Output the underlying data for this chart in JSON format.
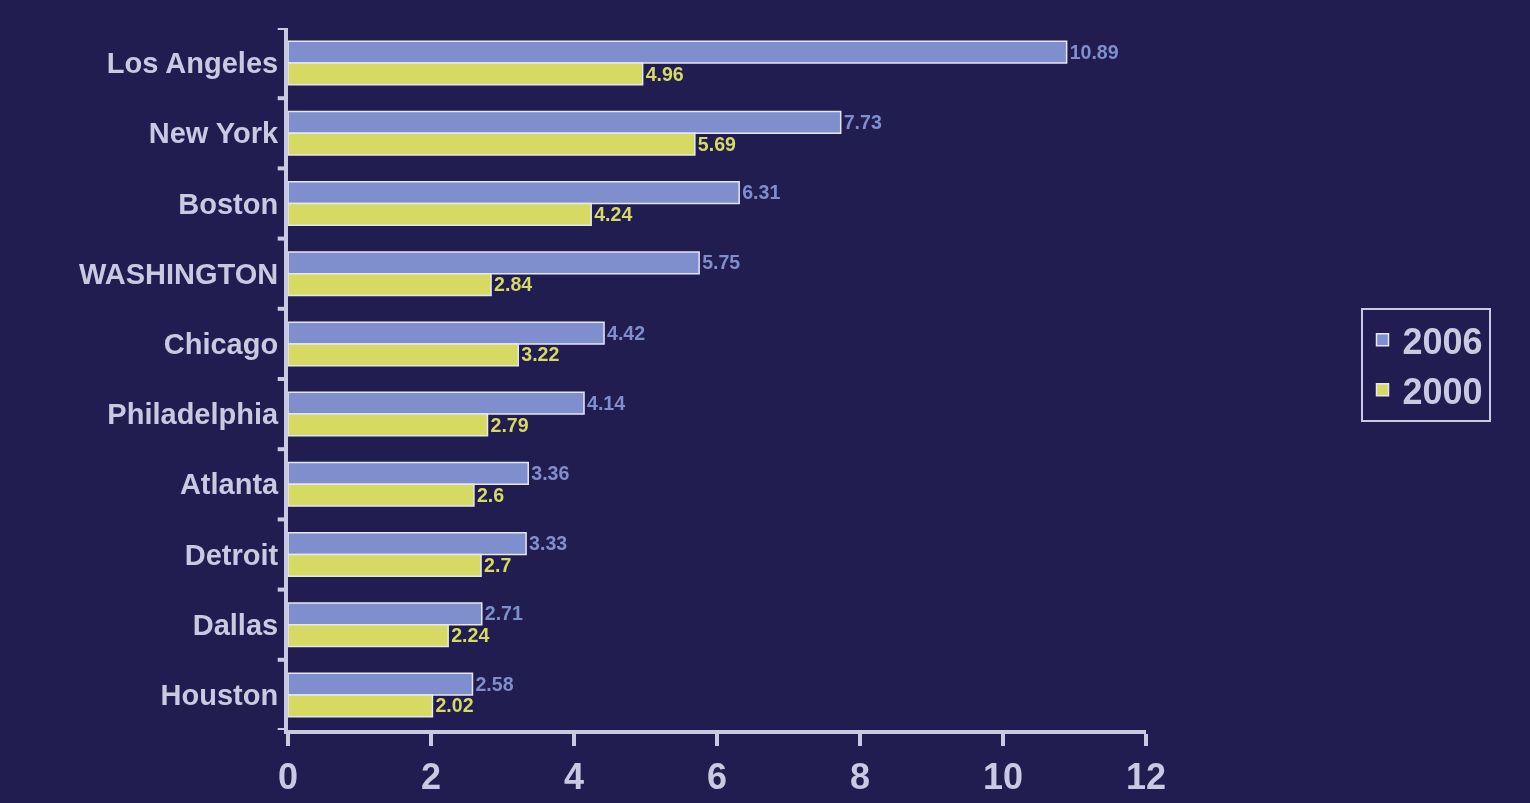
{
  "chart_data": {
    "type": "bar",
    "orientation": "horizontal",
    "categories": [
      "Los Angeles",
      "New York",
      "Boston",
      "WASHINGTON",
      "Chicago",
      "Philadelphia",
      "Atlanta",
      "Detroit",
      "Dallas",
      "Houston"
    ],
    "series": [
      {
        "name": "2006",
        "color": "#7f8ecc",
        "values": [
          10.89,
          7.73,
          6.31,
          5.75,
          4.42,
          4.14,
          3.36,
          3.33,
          2.71,
          2.58
        ]
      },
      {
        "name": "2000",
        "color": "#d6da62",
        "values": [
          4.96,
          5.69,
          4.24,
          2.84,
          3.22,
          2.79,
          2.6,
          2.7,
          2.24,
          2.02
        ]
      }
    ],
    "xlim": [
      0,
      12
    ],
    "xticks": [
      0,
      2,
      4,
      6,
      8,
      10,
      12
    ],
    "data_labels": true,
    "legend": "right"
  }
}
